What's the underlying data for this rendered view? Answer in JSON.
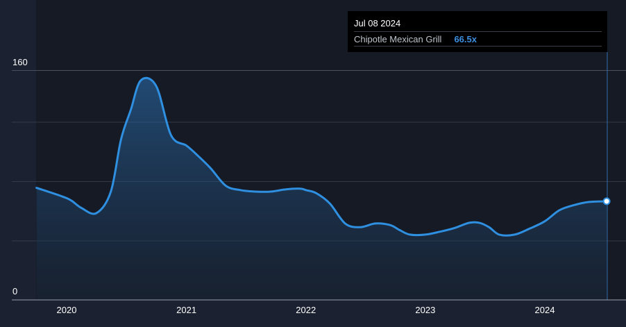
{
  "tooltip": {
    "date": "Jul 08 2024",
    "series_name": "Chipotle Mexican Grill",
    "value": "66.5x"
  },
  "colors": {
    "background": "#1b2130",
    "plot_shade": "#151a24",
    "line": "#2f8fe0",
    "value_text": "#3c8fe0"
  },
  "chart_data": {
    "type": "area",
    "title": "",
    "xlabel": "",
    "ylabel": "",
    "ylim": [
      0,
      160
    ],
    "y_ticks": [
      "160",
      "0"
    ],
    "x_ticks": [
      "2020",
      "2021",
      "2022",
      "2023",
      "2024"
    ],
    "grid": true,
    "series": [
      {
        "name": "Chipotle Mexican Grill",
        "x": [
          "2019-10-01",
          "2019-12-15",
          "2020-01-15",
          "2020-02-15",
          "2020-04-01",
          "2020-05-15",
          "2020-06-15",
          "2020-07-15",
          "2020-08-15",
          "2020-10-01",
          "2020-11-15",
          "2021-01-01",
          "2021-02-01",
          "2021-03-15",
          "2021-05-01",
          "2021-06-15",
          "2021-08-01",
          "2021-09-15",
          "2021-11-01",
          "2021-12-15",
          "2022-01-01",
          "2022-02-01",
          "2022-03-15",
          "2022-05-01",
          "2022-06-15",
          "2022-08-01",
          "2022-09-15",
          "2022-10-15",
          "2022-11-15",
          "2023-01-01",
          "2023-02-15",
          "2023-04-01",
          "2023-05-15",
          "2023-06-15",
          "2023-07-15",
          "2023-08-15",
          "2023-10-01",
          "2023-11-15",
          "2024-01-01",
          "2024-02-15",
          "2024-04-01",
          "2024-05-15",
          "2024-07-08"
        ],
        "values": [
          75.5,
          70,
          67,
          62,
          58.5,
          73,
          108,
          128,
          148,
          144,
          111,
          104,
          98,
          89,
          77,
          74,
          73,
          73,
          74.5,
          75,
          74,
          72,
          65,
          51.5,
          49,
          51.5,
          50.5,
          47,
          44,
          44,
          46,
          48.5,
          52,
          52,
          49,
          44,
          44,
          48,
          53,
          60.5,
          64,
          66,
          66.5
        ]
      }
    ]
  }
}
